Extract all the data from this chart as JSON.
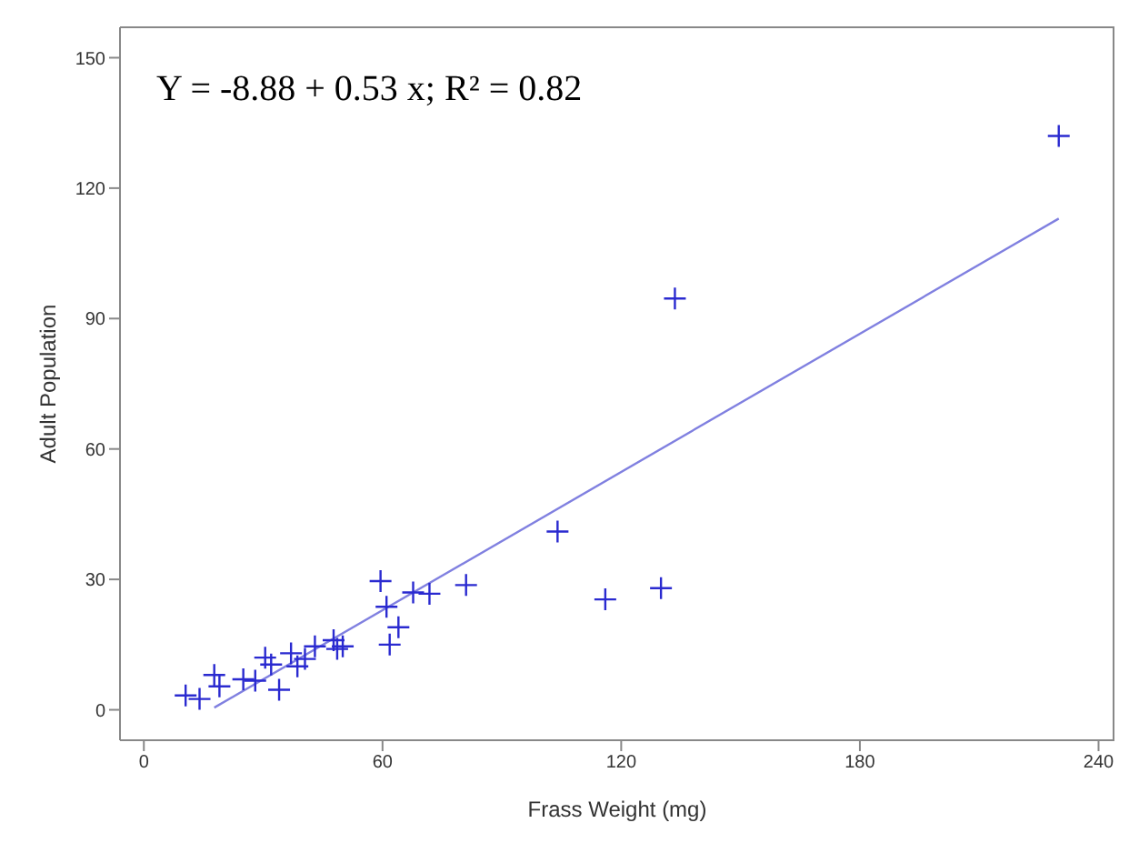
{
  "chart_data": {
    "type": "scatter",
    "xlabel": "Frass Weight (mg)",
    "ylabel": "Adult Population",
    "annotations": [
      "Y = -8.88 + 0.53 x; R² = 0.82"
    ],
    "xlim": [
      -6,
      244
    ],
    "ylim": [
      -7,
      157
    ],
    "xticks": [
      0,
      60,
      120,
      180,
      240
    ],
    "yticks": [
      0,
      30,
      60,
      90,
      120,
      150
    ],
    "grid": false,
    "legend": false,
    "marker": "cross",
    "series": [
      {
        "color": "#2a2ad0",
        "x": [
          10.5,
          14,
          17.7,
          19,
          25,
          28,
          30.5,
          32,
          34,
          37,
          38.6,
          40.5,
          43,
          47.7,
          48.6,
          50,
          59.5,
          61,
          61.8,
          64,
          67.7,
          71.8,
          81,
          104,
          116,
          130,
          133.5,
          230
        ],
        "values": [
          3.3,
          2.5,
          8,
          5.4,
          7,
          6.7,
          12,
          10.4,
          4.6,
          13,
          10,
          11.7,
          14.6,
          16,
          14,
          14.6,
          29.6,
          23.7,
          15,
          19,
          27,
          26.7,
          28.7,
          41,
          25.4,
          28,
          94.6,
          132
        ]
      },
      {
        "type": "line",
        "color": "#8080e0",
        "marker": "none",
        "line_style": "solid",
        "x": [
          17.7,
          230
        ],
        "values": [
          0.5,
          113
        ]
      }
    ]
  }
}
